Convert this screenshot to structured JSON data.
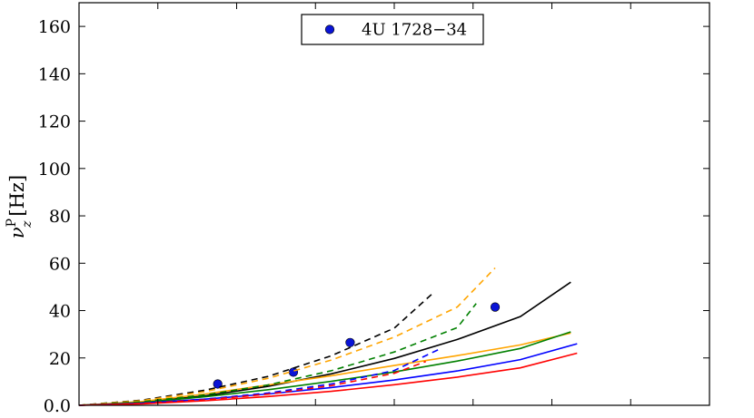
{
  "chart_data": {
    "type": "line",
    "xlabel": "",
    "ylabel": {
      "symbol": "ν",
      "subscript": "z",
      "superscript": "P",
      "unit": "[Hz]"
    },
    "ylim": [
      0,
      170
    ],
    "xlim": [
      0,
      1
    ],
    "yticks": [
      "0.0",
      "20",
      "40",
      "60",
      "80",
      "100",
      "120",
      "140",
      "160"
    ],
    "yticks_values": [
      0,
      20,
      40,
      60,
      80,
      100,
      120,
      140,
      160
    ],
    "grid": false,
    "legend": {
      "placement": "top-center",
      "entries": [
        "4U 1728−34"
      ]
    },
    "series": [
      {
        "name": "4U 1728−34",
        "style": "markers",
        "color": "#0a14d6",
        "x": [
          0.22,
          0.34,
          0.43,
          0.66
        ],
        "y": [
          9,
          14,
          26.5,
          41.5
        ]
      },
      {
        "style": "solid",
        "color": "#000000",
        "x": [
          0.0,
          0.1,
          0.2,
          0.3,
          0.4,
          0.5,
          0.6,
          0.7,
          0.78
        ],
        "y": [
          0,
          1.3,
          4.0,
          8.0,
          13.3,
          19.8,
          27.8,
          37.5,
          52
        ]
      },
      {
        "style": "solid",
        "color": "#ffa500",
        "x": [
          0.0,
          0.1,
          0.2,
          0.3,
          0.4,
          0.5,
          0.6,
          0.7,
          0.78
        ],
        "y": [
          0,
          1.6,
          4.8,
          8.6,
          12.5,
          16.8,
          21.0,
          25.5,
          30.5
        ]
      },
      {
        "style": "solid",
        "color": "#008000",
        "x": [
          0.0,
          0.1,
          0.2,
          0.3,
          0.4,
          0.5,
          0.6,
          0.7,
          0.78
        ],
        "y": [
          0,
          1.2,
          3.6,
          6.6,
          10.1,
          14.1,
          18.7,
          24.0,
          31
        ]
      },
      {
        "style": "solid",
        "color": "#0000ff",
        "x": [
          0.0,
          0.1,
          0.2,
          0.3,
          0.4,
          0.5,
          0.6,
          0.7,
          0.79
        ],
        "y": [
          0,
          0.9,
          2.6,
          4.8,
          7.5,
          10.7,
          14.5,
          19.3,
          26
        ]
      },
      {
        "style": "solid",
        "color": "#ff0000",
        "x": [
          0.0,
          0.1,
          0.2,
          0.3,
          0.4,
          0.5,
          0.6,
          0.7,
          0.79
        ],
        "y": [
          0,
          0.6,
          1.9,
          3.7,
          5.9,
          8.7,
          11.9,
          15.8,
          22
        ]
      },
      {
        "style": "dashed",
        "color": "#000000",
        "x": [
          0.0,
          0.1,
          0.2,
          0.3,
          0.4,
          0.5,
          0.56
        ],
        "y": [
          0,
          2.2,
          6.4,
          12.2,
          20.9,
          32.6,
          47
        ]
      },
      {
        "style": "dashed",
        "color": "#ffa500",
        "x": [
          0.0,
          0.1,
          0.2,
          0.3,
          0.4,
          0.5,
          0.6,
          0.66
        ],
        "y": [
          0,
          2.0,
          5.8,
          11.4,
          19.1,
          28.8,
          41.5,
          58
        ]
      },
      {
        "style": "dashed",
        "color": "#008000",
        "x": [
          0.0,
          0.1,
          0.2,
          0.3,
          0.4,
          0.5,
          0.6,
          0.63
        ],
        "y": [
          0,
          1.5,
          4.4,
          8.6,
          14.6,
          22.5,
          32.8,
          43
        ]
      },
      {
        "style": "dashed",
        "color": "#0000ff",
        "x": [
          0.0,
          0.1,
          0.2,
          0.3,
          0.4,
          0.5,
          0.57
        ],
        "y": [
          0,
          0.9,
          2.6,
          5.2,
          9.0,
          14.7,
          23.5
        ]
      },
      {
        "style": "dashed",
        "color": "#ff0000",
        "x": [
          0.0,
          0.1,
          0.2,
          0.3,
          0.4,
          0.5,
          0.55
        ],
        "y": [
          0,
          0.8,
          2.3,
          4.7,
          8.3,
          13.5,
          18.5
        ]
      }
    ]
  }
}
